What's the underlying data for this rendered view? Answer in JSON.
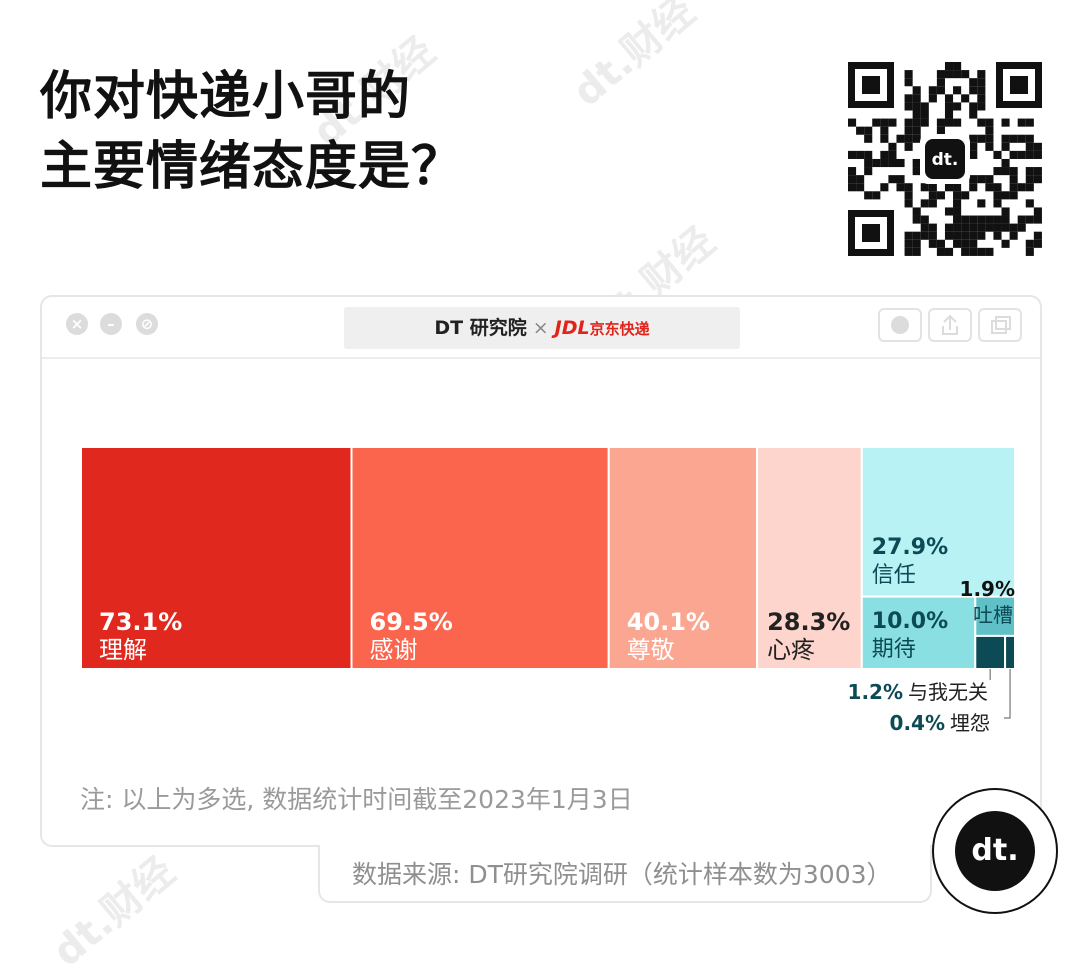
{
  "title_line1": "你对快递小哥的",
  "title_line2": "主要情绪态度是？",
  "window": {
    "brand_dt": "DT 研究院",
    "separator": "×",
    "brand_jdl": "JDL",
    "brand_jdl_cn": "京东快递"
  },
  "colors": {
    "理解": "#e0281e",
    "感谢": "#fb654d",
    "尊敬": "#fba690",
    "心疼": "#fdd5cc",
    "信任": "#b9f2f4",
    "期待": "#8adfe3",
    "吐槽": "#5fc0c7",
    "与我无关": "#0c4a55",
    "埋怨": "#0c4a55"
  },
  "chart_data": {
    "type": "treemap",
    "items": [
      {
        "label": "理解",
        "value": 73.1,
        "value_text": "73.1%"
      },
      {
        "label": "感谢",
        "value": 69.5,
        "value_text": "69.5%"
      },
      {
        "label": "尊敬",
        "value": 40.1,
        "value_text": "40.1%"
      },
      {
        "label": "心疼",
        "value": 28.3,
        "value_text": "28.3%"
      },
      {
        "label": "信任",
        "value": 27.9,
        "value_text": "27.9%"
      },
      {
        "label": "期待",
        "value": 10.0,
        "value_text": "10.0%"
      },
      {
        "label": "吐槽",
        "value": 1.9,
        "value_text": "1.9%"
      },
      {
        "label": "与我无关",
        "value": 1.2,
        "value_text": "1.2%"
      },
      {
        "label": "埋怨",
        "value": 0.4,
        "value_text": "0.4%"
      }
    ]
  },
  "note": "注: 以上为多选, 数据统计时间截至2023年1月3日",
  "source": "数据来源: DT研究院调研（统计样本数为3003）",
  "watermark": "dt.财经",
  "badge": "dt."
}
